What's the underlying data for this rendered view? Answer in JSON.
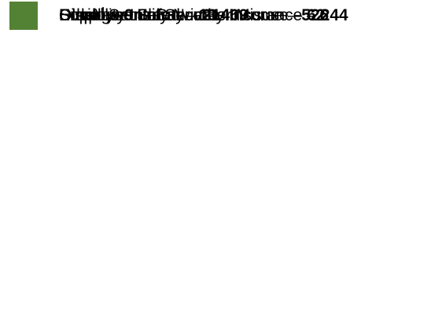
{
  "separator": "–",
  "items": [
    {
      "label": "Supplemental Security Income",
      "value": 526,
      "color": "#9c0a3f"
    },
    {
      "label": "Disability Insurance",
      "value": 469,
      "color": "#172a45"
    },
    {
      "label": "Old-Age and Survivors Insurance",
      "value": 244,
      "color": "#c09100"
    },
    {
      "label": "Social Security Number Misuse",
      "value": 62,
      "color": "#bdd7ee"
    },
    {
      "label": "Employee Safety",
      "value": 21,
      "color": "#f5b183"
    },
    {
      "label": "Employee Fraud",
      "value": 13,
      "color": "#00b0f0"
    },
    {
      "label": "Other",
      "footnote": "1",
      "value": 9,
      "color": "#548235"
    }
  ]
}
